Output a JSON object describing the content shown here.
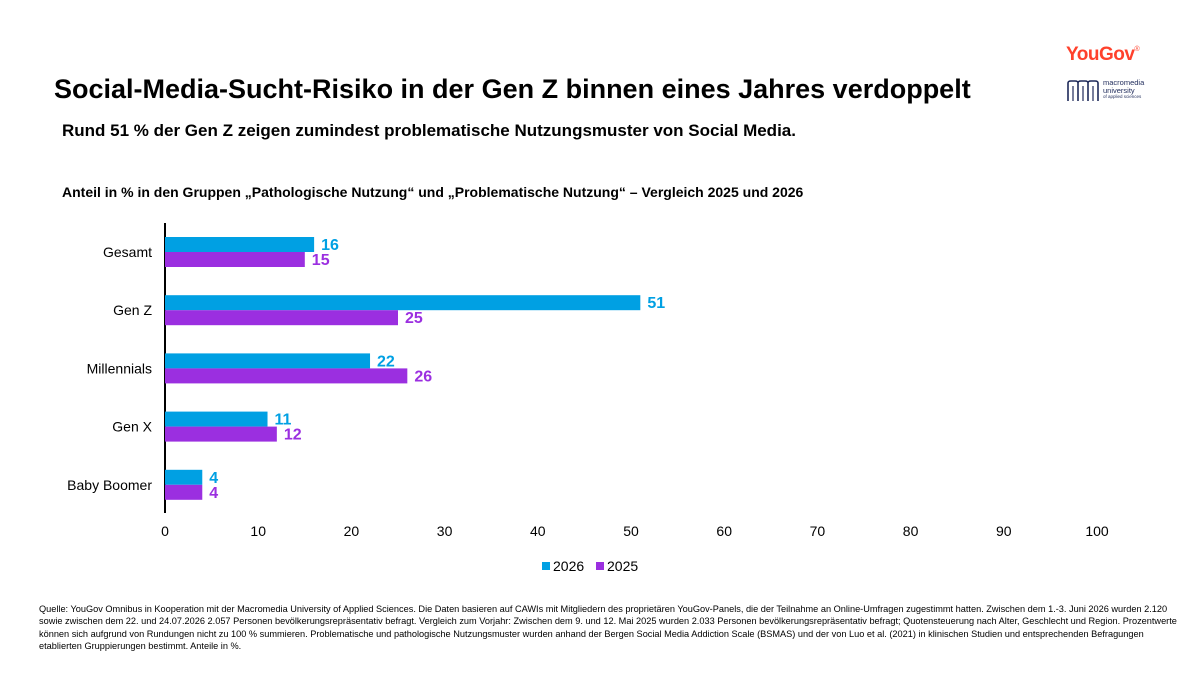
{
  "header": {
    "title": "Social-Media-Sucht-Risiko in der Gen Z binnen eines Jahres verdoppelt",
    "subtitle": "Rund 51 % der Gen Z zeigen zumindest problematische Nutzungsmuster von Social Media.",
    "chart_heading": "Anteil in % in den Gruppen „Pathologische Nutzung“ und „Problematische Nutzung“ – Vergleich 2025 und 2026"
  },
  "logos": {
    "yougov": "YouGov",
    "yougov_mark": "®",
    "macromedia_line1": "macromedia",
    "macromedia_line2": "university",
    "macromedia_line3": "of applied sciences"
  },
  "colors": {
    "series_2026": "#00a0e3",
    "series_2025": "#9b2fe0",
    "axis": "#000000",
    "brand": "#ff412c"
  },
  "chart_data": {
    "type": "bar",
    "orientation": "horizontal",
    "title": "Anteil in % in den Gruppen „Pathologische Nutzung“ und „Problematische Nutzung“ – Vergleich 2025 und 2026",
    "categories": [
      "Gesamt",
      "Gen Z",
      "Millennials",
      "Gen X",
      "Baby Boomer"
    ],
    "series": [
      {
        "name": "2026",
        "values": [
          16,
          51,
          22,
          11,
          4
        ],
        "color": "#00a0e3"
      },
      {
        "name": "2025",
        "values": [
          15,
          25,
          26,
          12,
          4
        ],
        "color": "#9b2fe0"
      }
    ],
    "xlim": [
      0,
      100
    ],
    "xticks": [
      0,
      10,
      20,
      30,
      40,
      50,
      60,
      70,
      80,
      90,
      100
    ],
    "xlabel": "",
    "ylabel": "",
    "grid": false,
    "legend_position": "bottom-center",
    "data_labels": true
  },
  "footnote": "Quelle: YouGov Omnibus in Kooperation mit der Macromedia University of Applied Sciences. Die Daten basieren auf CAWIs mit Mitgliedern des proprietären YouGov-Panels, die der Teilnahme an Online-Umfragen zugestimmt hatten. Zwischen dem 1.-3. Juni 2026 wurden 2.120 sowie zwischen dem 22. und 24.07.2026 2.057 Personen bevölkerungsrepräsentativ befragt. Vergleich zum Vorjahr: Zwischen dem 9. und 12. Mai 2025 wurden 2.033 Personen bevölkerungsrepräsentativ befragt; Quotensteuerung nach Alter, Geschlecht und Region. Prozentwerte können sich aufgrund von Rundungen nicht zu 100 % summieren. Problematische und pathologische Nutzungsmuster wurden anhand der Bergen Social Media Addiction Scale (BSMAS) und der von Luo et al. (2021) in klinischen Studien und entsprechenden Befragungen etablierten Gruppierungen bestimmt. Anteile in %."
}
